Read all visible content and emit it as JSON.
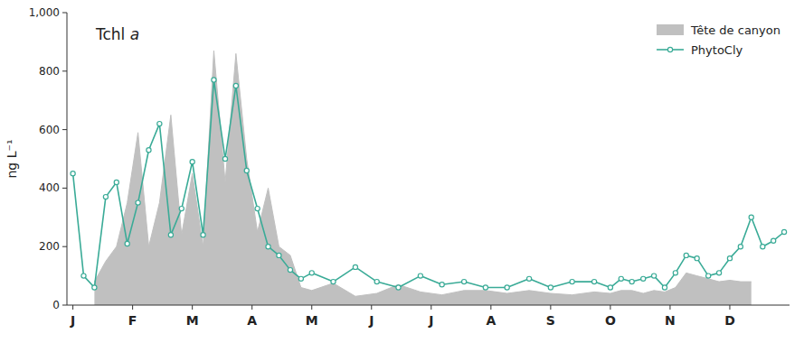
{
  "chart_data": {
    "type": "line",
    "title": "Tchl a",
    "y_label": "ng L⁻¹",
    "xlim": [
      -0.1,
      12
    ],
    "xticks": [
      {
        "value": 0,
        "label": "J"
      },
      {
        "value": 1,
        "label": "F"
      },
      {
        "value": 2,
        "label": "M"
      },
      {
        "value": 3,
        "label": "A"
      },
      {
        "value": 4,
        "label": "M"
      },
      {
        "value": 5,
        "label": "J"
      },
      {
        "value": 6,
        "label": "J"
      },
      {
        "value": 7,
        "label": "A"
      },
      {
        "value": 8,
        "label": "S"
      },
      {
        "value": 9,
        "label": "O"
      },
      {
        "value": 10,
        "label": "N"
      },
      {
        "value": 11,
        "label": "D"
      }
    ],
    "ylim": [
      0,
      1000
    ],
    "yticks": [
      0,
      200,
      400,
      600,
      800,
      {
        "value": 1000,
        "label": "1,000"
      }
    ],
    "grid": false,
    "legend": "upper right",
    "series": [
      {
        "name": "Tête de canyon",
        "type": "area",
        "color": "#c0c0c0",
        "x": [
          0.36,
          0.55,
          0.73,
          0.91,
          1.09,
          1.27,
          1.45,
          1.64,
          1.82,
          2.0,
          2.18,
          2.36,
          2.55,
          2.73,
          2.91,
          3.09,
          3.27,
          3.45,
          3.64,
          3.82,
          4.0,
          4.36,
          4.73,
          5.09,
          5.45,
          5.82,
          6.18,
          6.55,
          6.91,
          7.27,
          7.64,
          8.0,
          8.36,
          8.73,
          9.0,
          9.18,
          9.36,
          9.55,
          9.73,
          9.91,
          10.09,
          10.27,
          10.45,
          10.64,
          10.82,
          11.0,
          11.18,
          11.36
        ],
        "values": [
          80,
          150,
          200,
          350,
          590,
          200,
          350,
          650,
          240,
          450,
          200,
          870,
          420,
          860,
          500,
          250,
          400,
          200,
          170,
          60,
          50,
          75,
          30,
          40,
          70,
          45,
          35,
          50,
          50,
          40,
          50,
          40,
          35,
          45,
          40,
          50,
          50,
          40,
          50,
          45,
          60,
          110,
          100,
          90,
          80,
          85,
          80,
          80
        ]
      },
      {
        "name": "PhytoCly",
        "type": "line",
        "color": "#3aab97",
        "marker": "o",
        "x": [
          0.0,
          0.18,
          0.36,
          0.55,
          0.73,
          0.91,
          1.09,
          1.27,
          1.45,
          1.64,
          1.82,
          2.0,
          2.18,
          2.36,
          2.55,
          2.73,
          2.91,
          3.09,
          3.27,
          3.45,
          3.64,
          3.82,
          4.0,
          4.36,
          4.73,
          5.09,
          5.45,
          5.82,
          6.18,
          6.55,
          6.91,
          7.27,
          7.64,
          8.0,
          8.36,
          8.73,
          9.0,
          9.18,
          9.36,
          9.55,
          9.73,
          9.91,
          10.09,
          10.27,
          10.45,
          10.64,
          10.82,
          11.0,
          11.18,
          11.36,
          11.55,
          11.73,
          11.91
        ],
        "values": [
          450,
          100,
          60,
          370,
          420,
          210,
          350,
          530,
          620,
          240,
          330,
          490,
          240,
          770,
          500,
          750,
          460,
          330,
          200,
          170,
          120,
          90,
          110,
          80,
          130,
          80,
          60,
          100,
          70,
          80,
          60,
          60,
          90,
          60,
          80,
          80,
          60,
          90,
          80,
          90,
          100,
          60,
          110,
          170,
          160,
          100,
          110,
          160,
          200,
          300,
          200,
          220,
          250
        ]
      }
    ]
  }
}
